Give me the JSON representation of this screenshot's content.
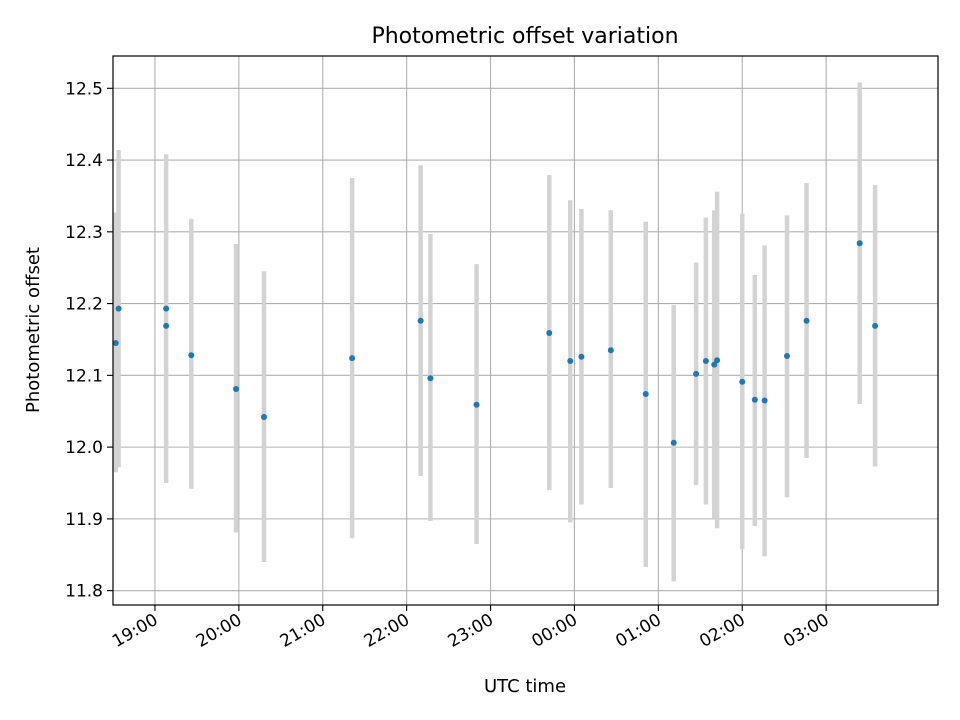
{
  "chart_data": {
    "type": "scatter",
    "title": "Photometric offset variation",
    "xlabel": "UTC time",
    "ylabel": "Photometric offset",
    "grid": true,
    "x_axis": {
      "kind": "time",
      "tick_labels": [
        "19:00",
        "20:00",
        "21:00",
        "22:00",
        "23:00",
        "00:00",
        "01:00",
        "02:00",
        "03:00"
      ],
      "xlim": [
        "18:30",
        "04:20"
      ]
    },
    "y_axis": {
      "tick_labels": [
        "11.8",
        "11.9",
        "12.0",
        "12.1",
        "12.2",
        "12.3",
        "12.4",
        "12.5"
      ],
      "ylim": [
        11.78,
        12.545
      ]
    },
    "series": [
      {
        "marker_color": "#1f77b4",
        "errorbar_color": "#d3d3d3",
        "points": [
          {
            "t": "18:32",
            "y": 12.145,
            "lo": 11.965,
            "hi": 12.327
          },
          {
            "t": "18:34",
            "y": 12.193,
            "lo": 11.972,
            "hi": 12.414
          },
          {
            "t": "19:08",
            "y": 12.169,
            "lo": 11.95,
            "hi": 12.408
          },
          {
            "t": "19:08",
            "y": 12.193
          },
          {
            "t": "19:26",
            "y": 12.128,
            "lo": 11.942,
            "hi": 12.318
          },
          {
            "t": "19:58",
            "y": 12.081,
            "lo": 11.881,
            "hi": 12.283
          },
          {
            "t": "20:18",
            "y": 12.042,
            "lo": 11.84,
            "hi": 12.245
          },
          {
            "t": "21:21",
            "y": 12.124,
            "lo": 11.873,
            "hi": 12.375
          },
          {
            "t": "22:10",
            "y": 12.176,
            "lo": 11.96,
            "hi": 12.393
          },
          {
            "t": "22:17",
            "y": 12.096,
            "lo": 11.897,
            "hi": 12.297
          },
          {
            "t": "22:50",
            "y": 12.059,
            "lo": 11.865,
            "hi": 12.255
          },
          {
            "t": "23:42",
            "y": 12.159,
            "lo": 11.94,
            "hi": 12.379
          },
          {
            "t": "23:57",
            "y": 12.12,
            "lo": 11.895,
            "hi": 12.344
          },
          {
            "t": "00:05",
            "y": 12.126,
            "lo": 11.92,
            "hi": 12.332
          },
          {
            "t": "00:26",
            "y": 12.135,
            "lo": 11.943,
            "hi": 12.33
          },
          {
            "t": "00:51",
            "y": 12.074,
            "lo": 11.833,
            "hi": 12.314
          },
          {
            "t": "01:11",
            "y": 12.006,
            "lo": 11.813,
            "hi": 12.198
          },
          {
            "t": "01:27",
            "y": 12.102,
            "lo": 11.947,
            "hi": 12.257
          },
          {
            "t": "01:34",
            "y": 12.12,
            "lo": 11.92,
            "hi": 12.32
          },
          {
            "t": "01:40",
            "y": 12.115,
            "lo": 11.9,
            "hi": 12.33
          },
          {
            "t": "01:42",
            "y": 12.121,
            "lo": 11.887,
            "hi": 12.356
          },
          {
            "t": "02:00",
            "y": 12.091,
            "lo": 11.858,
            "hi": 12.325
          },
          {
            "t": "02:09",
            "y": 12.066,
            "lo": 11.89,
            "hi": 12.24
          },
          {
            "t": "02:16",
            "y": 12.065,
            "lo": 11.848,
            "hi": 12.281
          },
          {
            "t": "02:32",
            "y": 12.127,
            "lo": 11.93,
            "hi": 12.323
          },
          {
            "t": "02:46",
            "y": 12.176,
            "lo": 11.985,
            "hi": 12.368
          },
          {
            "t": "03:24",
            "y": 12.284,
            "lo": 12.06,
            "hi": 12.508
          },
          {
            "t": "03:35",
            "y": 12.169,
            "lo": 11.973,
            "hi": 12.365
          }
        ]
      }
    ]
  }
}
